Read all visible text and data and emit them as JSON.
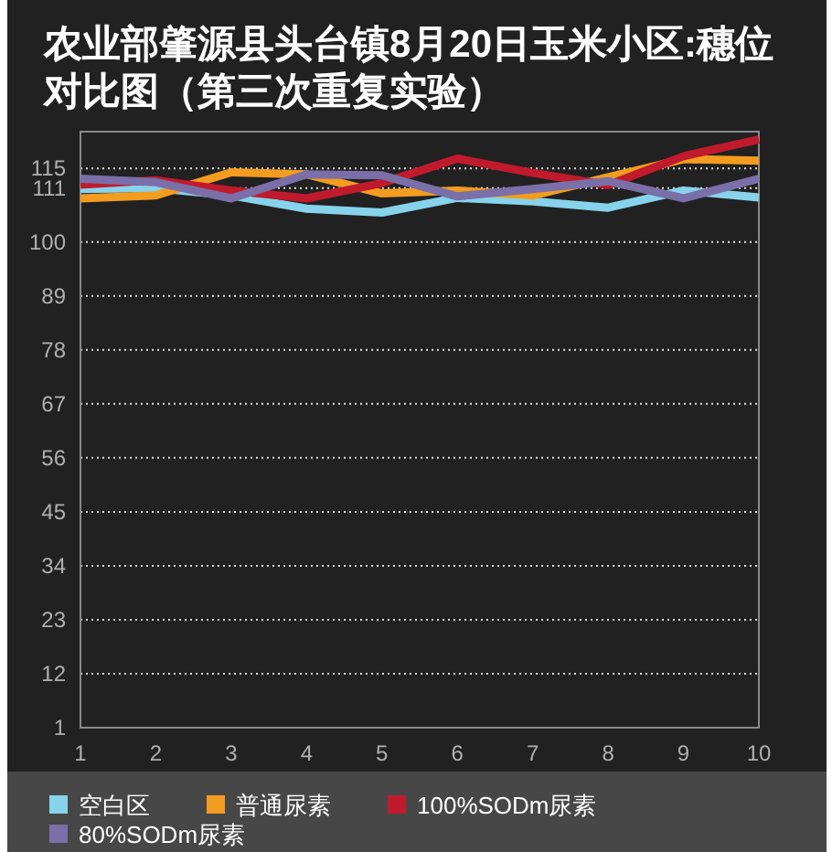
{
  "chart_data": {
    "type": "line",
    "title": "农业部肇源县头台镇8月20日玉米小区:穗位对比图（第三次重复实验）",
    "x": [
      1,
      2,
      3,
      4,
      5,
      6,
      7,
      8,
      9,
      10
    ],
    "xlim": [
      1,
      10
    ],
    "xticks": [
      1,
      2,
      3,
      4,
      5,
      6,
      7,
      8,
      9,
      10
    ],
    "ylim": [
      1,
      122.5
    ],
    "yticks": [
      1,
      12,
      23,
      34,
      45,
      56,
      67,
      78,
      89,
      100,
      111,
      115
    ],
    "grid": "y",
    "legend": "bottom",
    "series": [
      {
        "name": "空白区",
        "color": "#87d3eb",
        "values": [
          110.8,
          111.0,
          109.5,
          106.8,
          106.0,
          109.0,
          108.3,
          107.0,
          110.5,
          109.1
        ]
      },
      {
        "name": "普通尿素",
        "color": "#f39c1f",
        "values": [
          108.9,
          109.5,
          114.2,
          113.8,
          109.9,
          110.5,
          109.5,
          113.2,
          116.9,
          116.6
        ]
      },
      {
        "name": "100%SODm尿素",
        "color": "#c01a2c",
        "values": [
          111.7,
          112.6,
          110.5,
          108.9,
          112.0,
          117.0,
          114.1,
          111.6,
          117.5,
          120.9
        ]
      },
      {
        "name": "80%SODm尿素",
        "color": "#7a6fa8",
        "values": [
          112.9,
          112.2,
          108.9,
          113.8,
          113.6,
          109.3,
          110.8,
          112.4,
          108.9,
          112.9
        ]
      }
    ]
  }
}
